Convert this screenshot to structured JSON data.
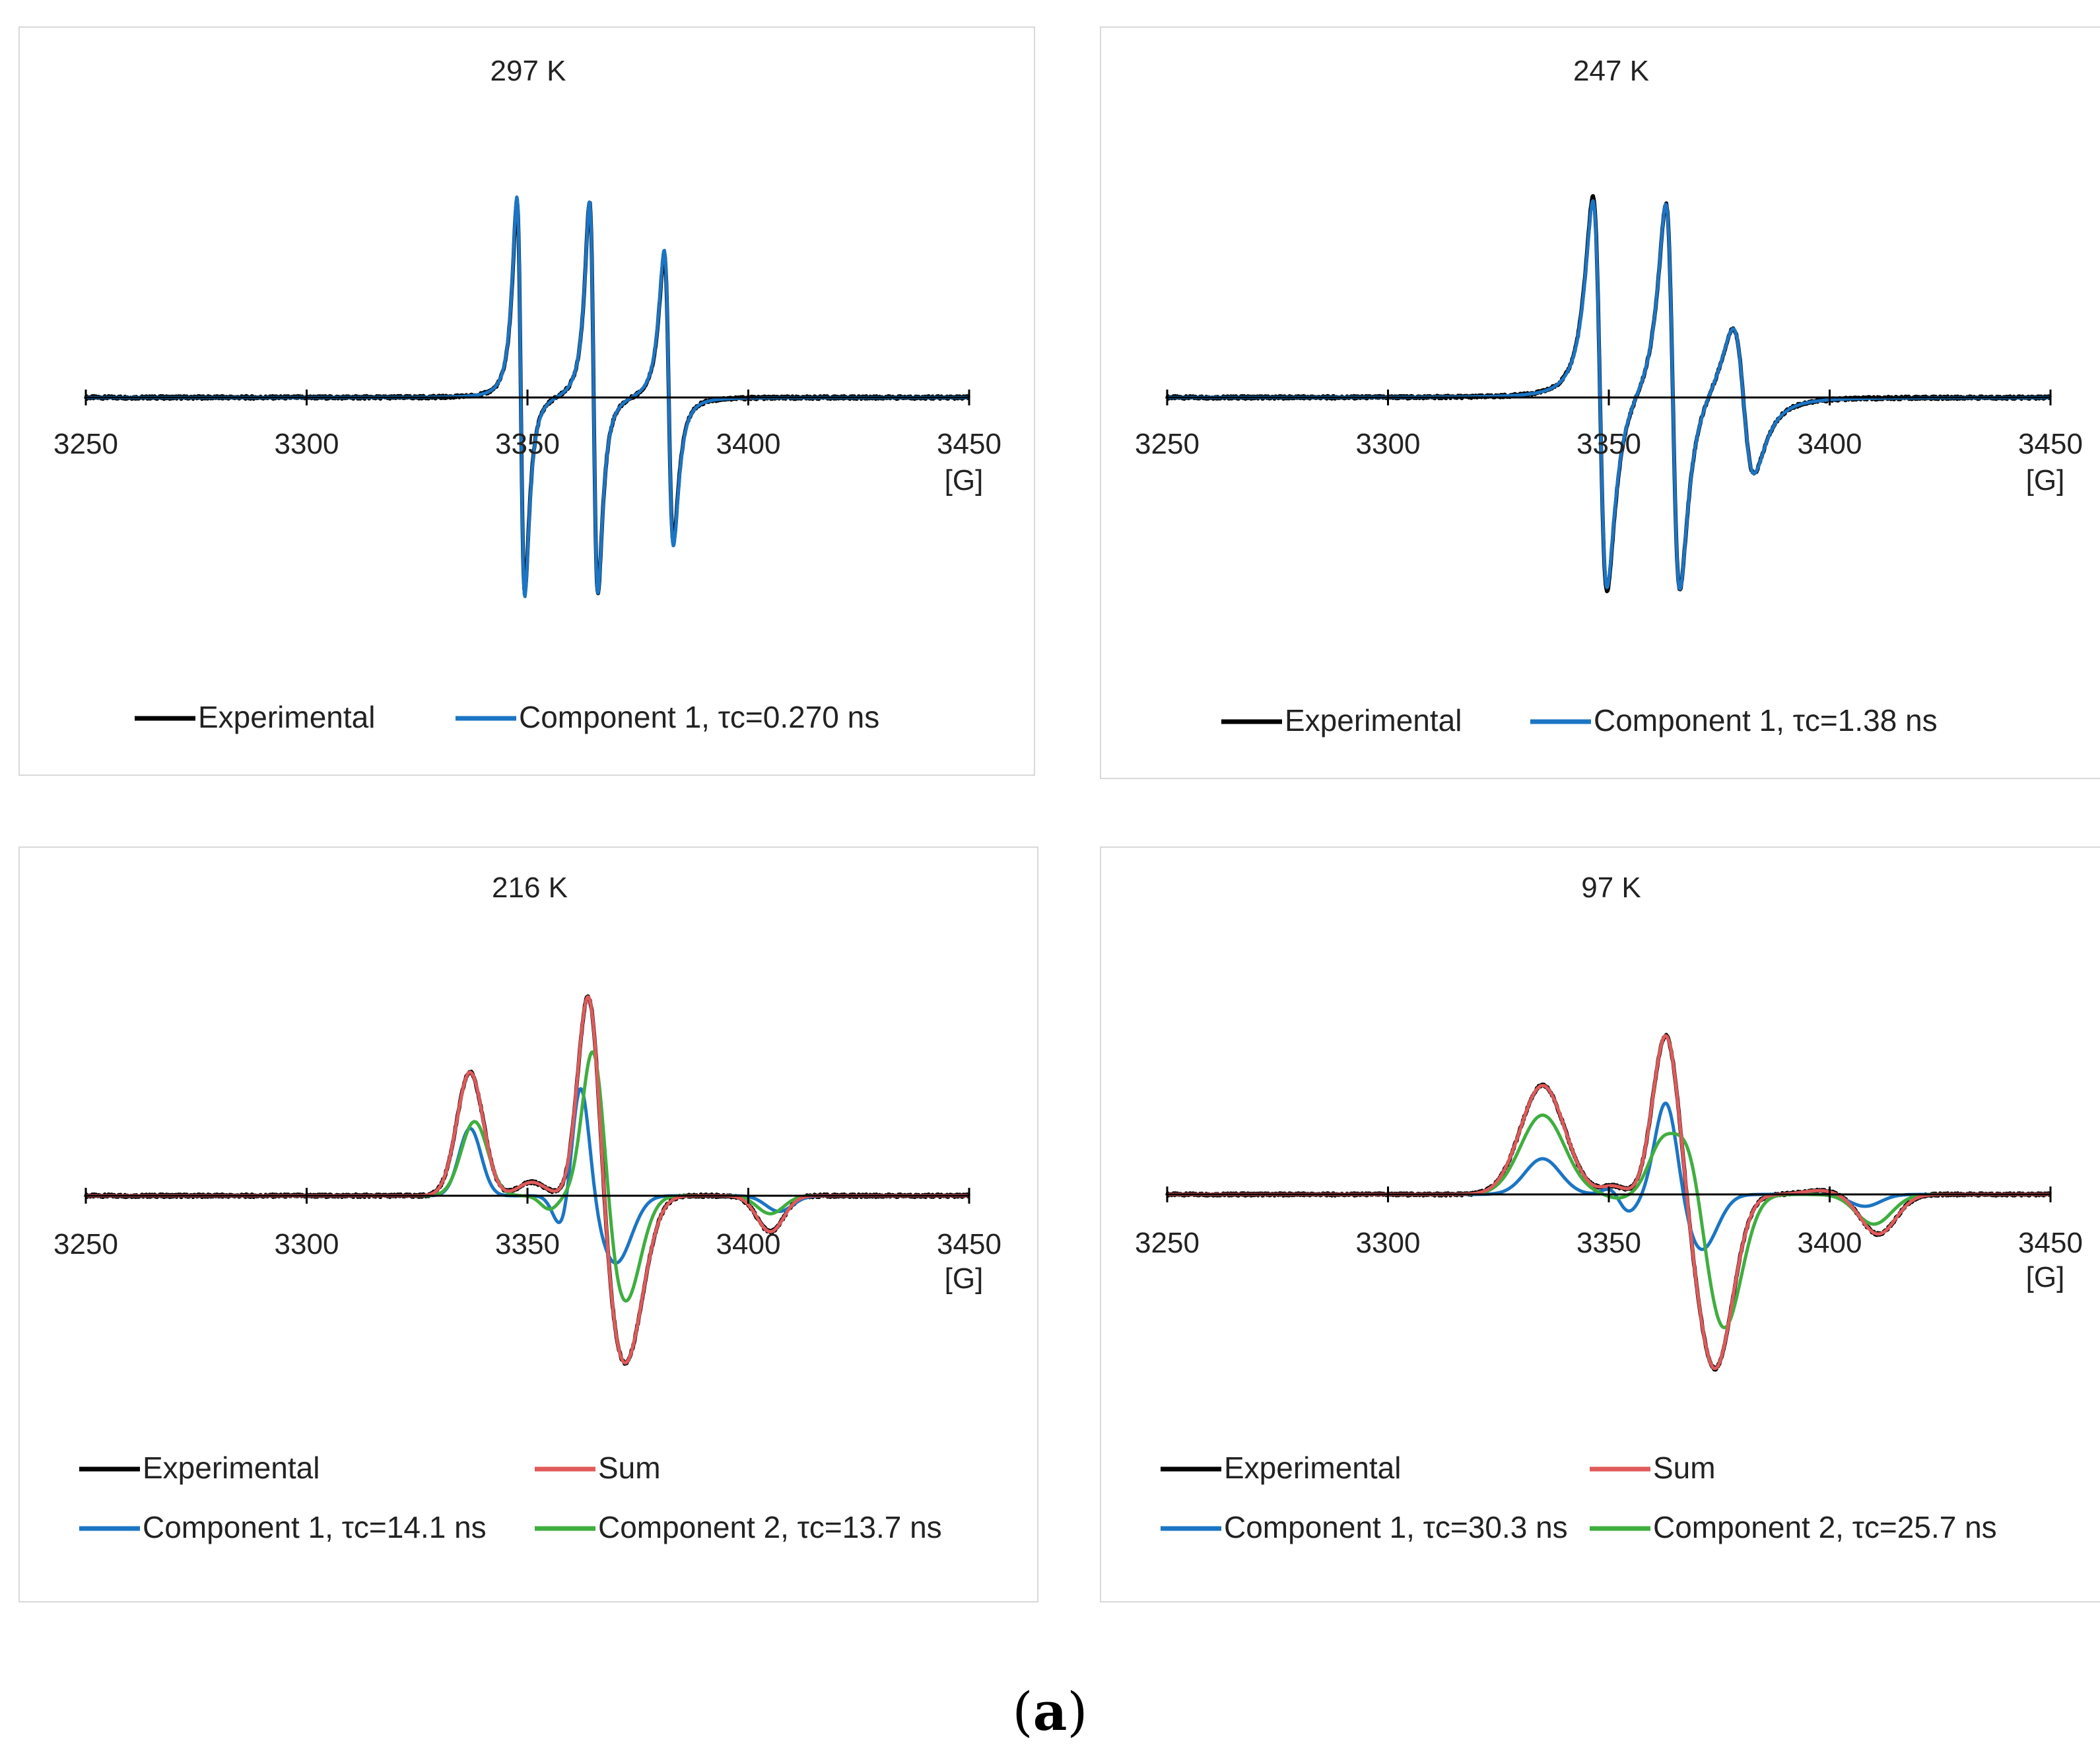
{
  "figure_caption": {
    "open": "(",
    "letter": "a",
    "close": ")"
  },
  "colors": {
    "experimental": "#000000",
    "component1": "#1b75c4",
    "component2": "#3fae3f",
    "sum": "#e05a5a",
    "axis": "#000000"
  },
  "chart_data": [
    {
      "type": "line",
      "title": "297 K",
      "xlabel": "[G]",
      "xlim": [
        3250,
        3450
      ],
      "ylim": [
        -1,
        1
      ],
      "x_ticks": [
        "3250",
        "3300",
        "3350",
        "3400",
        "3450"
      ],
      "legend": [
        "Experimental",
        "Component 1, τc=0.270 ns"
      ],
      "series": [
        {
          "name": "Experimental",
          "color_key": "experimental",
          "lines": [
            {
              "c": 3348.5,
              "a": 0.98,
              "w": 0.9
            },
            {
              "c": 3365.0,
              "a": 0.98,
              "w": 0.95
            },
            {
              "c": 3382.0,
              "a": 0.72,
              "w": 1.05
            }
          ]
        },
        {
          "name": "Component 1, τc=0.270 ns",
          "color_key": "component1",
          "lines": [
            {
              "c": 3348.5,
              "a": 1.0,
              "w": 0.9
            },
            {
              "c": 3365.0,
              "a": 0.98,
              "w": 0.95
            },
            {
              "c": 3382.0,
              "a": 0.74,
              "w": 1.05
            }
          ]
        }
      ]
    },
    {
      "type": "line",
      "title": "247 K",
      "xlabel": "[G]",
      "xlim": [
        3250,
        3450
      ],
      "ylim": [
        -1,
        1
      ],
      "x_ticks": [
        "3250",
        "3300",
        "3350",
        "3400",
        "3450"
      ],
      "legend": [
        "Experimental",
        "Component 1, τc=1.38 ns"
      ],
      "series": [
        {
          "name": "Experimental",
          "color_key": "experimental",
          "lines": [
            {
              "c": 3348.0,
              "a": 1.02,
              "w": 1.6
            },
            {
              "c": 3364.5,
              "a": 1.0,
              "w": 1.6
            },
            {
              "c": 3380.5,
              "a": 0.38,
              "w": 2.4
            }
          ]
        },
        {
          "name": "Component 1, τc=1.38 ns",
          "color_key": "component1",
          "lines": [
            {
              "c": 3348.0,
              "a": 1.0,
              "w": 1.6
            },
            {
              "c": 3364.5,
              "a": 1.0,
              "w": 1.6
            },
            {
              "c": 3380.5,
              "a": 0.38,
              "w": 2.4
            }
          ]
        }
      ]
    },
    {
      "type": "line",
      "title": "216 K",
      "xlabel": "[G]",
      "xlim": [
        3250,
        3450
      ],
      "ylim": [
        -1,
        1
      ],
      "x_ticks": [
        "3250",
        "3300",
        "3350",
        "3400",
        "3450"
      ],
      "legend": [
        "Experimental",
        "Sum",
        "Component 1, τc=14.1 ns",
        "Component 2, τc=13.7 ns"
      ],
      "series": [
        {
          "name": "Experimental",
          "color_key": "experimental",
          "features": [
            {
              "c": 3337,
              "a": 0.55,
              "w": 3.0
            },
            {
              "c": 3351,
              "a": 0.06,
              "w": 3.0
            },
            {
              "c": 3364,
              "a": 0.98,
              "w": 2.5
            },
            {
              "c": 3372,
              "a": -0.75,
              "w": 4.0
            },
            {
              "c": 3405,
              "a": -0.16,
              "w": 3.0
            }
          ]
        },
        {
          "name": "Sum",
          "color_key": "sum",
          "features": [
            {
              "c": 3337,
              "a": 0.55,
              "w": 3.0
            },
            {
              "c": 3351,
              "a": 0.06,
              "w": 3.0
            },
            {
              "c": 3364,
              "a": 0.98,
              "w": 2.5
            },
            {
              "c": 3372,
              "a": -0.75,
              "w": 4.0
            },
            {
              "c": 3405,
              "a": -0.16,
              "w": 3.0
            }
          ]
        },
        {
          "name": "Component 1, τc=14.1 ns",
          "color_key": "component1",
          "features": [
            {
              "c": 3337,
              "a": 0.3,
              "w": 2.5
            },
            {
              "c": 3358,
              "a": -0.16,
              "w": 2.0
            },
            {
              "c": 3362,
              "a": 0.52,
              "w": 2.0
            },
            {
              "c": 3370,
              "a": -0.3,
              "w": 3.5
            },
            {
              "c": 3407,
              "a": -0.07,
              "w": 3.0
            }
          ]
        },
        {
          "name": "Component 2, τc=13.7 ns",
          "color_key": "component2",
          "features": [
            {
              "c": 3338,
              "a": 0.33,
              "w": 3.0
            },
            {
              "c": 3355,
              "a": -0.06,
              "w": 2.0
            },
            {
              "c": 3365,
              "a": 0.7,
              "w": 2.5
            },
            {
              "c": 3372,
              "a": -0.48,
              "w": 3.5
            },
            {
              "c": 3405,
              "a": -0.08,
              "w": 3.0
            }
          ]
        }
      ]
    },
    {
      "type": "line",
      "title": "97 K",
      "xlabel": "[G]",
      "xlim": [
        3250,
        3450
      ],
      "ylim": [
        -1,
        1
      ],
      "x_ticks": [
        "3250",
        "3300",
        "3350",
        "3400",
        "3450"
      ],
      "legend": [
        "Experimental",
        "Sum",
        "Component 1, τc=30.3 ns",
        "Component 2, τc=25.7 ns"
      ],
      "series": [
        {
          "name": "Experimental",
          "color_key": "experimental",
          "features": [
            {
              "c": 3335,
              "a": 0.55,
              "w": 5.0
            },
            {
              "c": 3351,
              "a": 0.04,
              "w": 2.5
            },
            {
              "c": 3363,
              "a": 0.82,
              "w": 3.0
            },
            {
              "c": 3374,
              "a": -0.88,
              "w": 4.0
            },
            {
              "c": 3398,
              "a": 0.02,
              "w": 4.0
            },
            {
              "c": 3411,
              "a": -0.2,
              "w": 4.0
            }
          ]
        },
        {
          "name": "Sum",
          "color_key": "sum",
          "features": [
            {
              "c": 3335,
              "a": 0.55,
              "w": 5.0
            },
            {
              "c": 3351,
              "a": 0.04,
              "w": 2.5
            },
            {
              "c": 3363,
              "a": 0.82,
              "w": 3.0
            },
            {
              "c": 3374,
              "a": -0.88,
              "w": 4.0
            },
            {
              "c": 3398,
              "a": 0.02,
              "w": 4.0
            },
            {
              "c": 3411,
              "a": -0.2,
              "w": 4.0
            }
          ]
        },
        {
          "name": "Component 1, τc=30.3 ns",
          "color_key": "component1",
          "features": [
            {
              "c": 3335,
              "a": 0.18,
              "w": 4.0
            },
            {
              "c": 3351,
              "a": 0.06,
              "w": 2.0
            },
            {
              "c": 3354,
              "a": -0.1,
              "w": 2.5
            },
            {
              "c": 3363,
              "a": 0.48,
              "w": 2.5
            },
            {
              "c": 3371,
              "a": -0.28,
              "w": 3.5
            },
            {
              "c": 3408,
              "a": -0.06,
              "w": 3.5
            }
          ]
        },
        {
          "name": "Component 2, τc=25.7 ns",
          "color_key": "component2",
          "features": [
            {
              "c": 3335,
              "a": 0.4,
              "w": 5.0
            },
            {
              "c": 3352,
              "a": -0.02,
              "w": 2.5
            },
            {
              "c": 3362,
              "a": 0.25,
              "w": 3.0
            },
            {
              "c": 3368,
              "a": 0.28,
              "w": 3.0
            },
            {
              "c": 3376,
              "a": -0.68,
              "w": 4.0
            },
            {
              "c": 3410,
              "a": -0.15,
              "w": 4.0
            }
          ]
        }
      ]
    }
  ]
}
